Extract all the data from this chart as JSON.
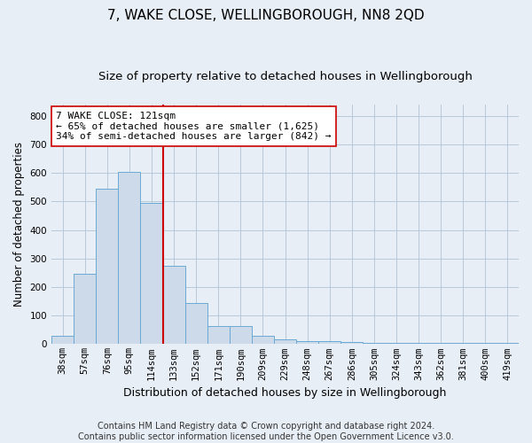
{
  "title": "7, WAKE CLOSE, WELLINGBOROUGH, NN8 2QD",
  "subtitle": "Size of property relative to detached houses in Wellingborough",
  "xlabel": "Distribution of detached houses by size in Wellingborough",
  "ylabel": "Number of detached properties",
  "footer_line1": "Contains HM Land Registry data © Crown copyright and database right 2024.",
  "footer_line2": "Contains public sector information licensed under the Open Government Licence v3.0.",
  "categories": [
    "38sqm",
    "57sqm",
    "76sqm",
    "95sqm",
    "114sqm",
    "133sqm",
    "152sqm",
    "171sqm",
    "190sqm",
    "209sqm",
    "229sqm",
    "248sqm",
    "267sqm",
    "286sqm",
    "305sqm",
    "324sqm",
    "343sqm",
    "362sqm",
    "381sqm",
    "400sqm",
    "419sqm"
  ],
  "values": [
    30,
    245,
    545,
    603,
    495,
    275,
    143,
    62,
    62,
    30,
    17,
    12,
    12,
    6,
    5,
    5,
    5,
    5,
    5,
    5,
    3
  ],
  "bar_color": "#ccdaea",
  "bar_edgecolor": "#6aaad4",
  "bar_linewidth": 0.7,
  "grid_color": "#b8c8da",
  "bg_color": "#e8eef5",
  "ylim": [
    0,
    840
  ],
  "yticks": [
    0,
    100,
    200,
    300,
    400,
    500,
    600,
    700,
    800
  ],
  "red_line_x": 4.5,
  "red_line_color": "#cc0000",
  "annotation_line1": "7 WAKE CLOSE: 121sqm",
  "annotation_line2": "← 65% of detached houses are smaller (1,625)",
  "annotation_line3": "34% of semi-detached houses are larger (842) →",
  "annotation_box_color": "#ffffff",
  "annotation_box_edgecolor": "#cc0000",
  "title_fontsize": 11,
  "subtitle_fontsize": 9.5,
  "xlabel_fontsize": 9,
  "ylabel_fontsize": 8.5,
  "tick_fontsize": 7.5,
  "annotation_fontsize": 8,
  "footer_fontsize": 7
}
